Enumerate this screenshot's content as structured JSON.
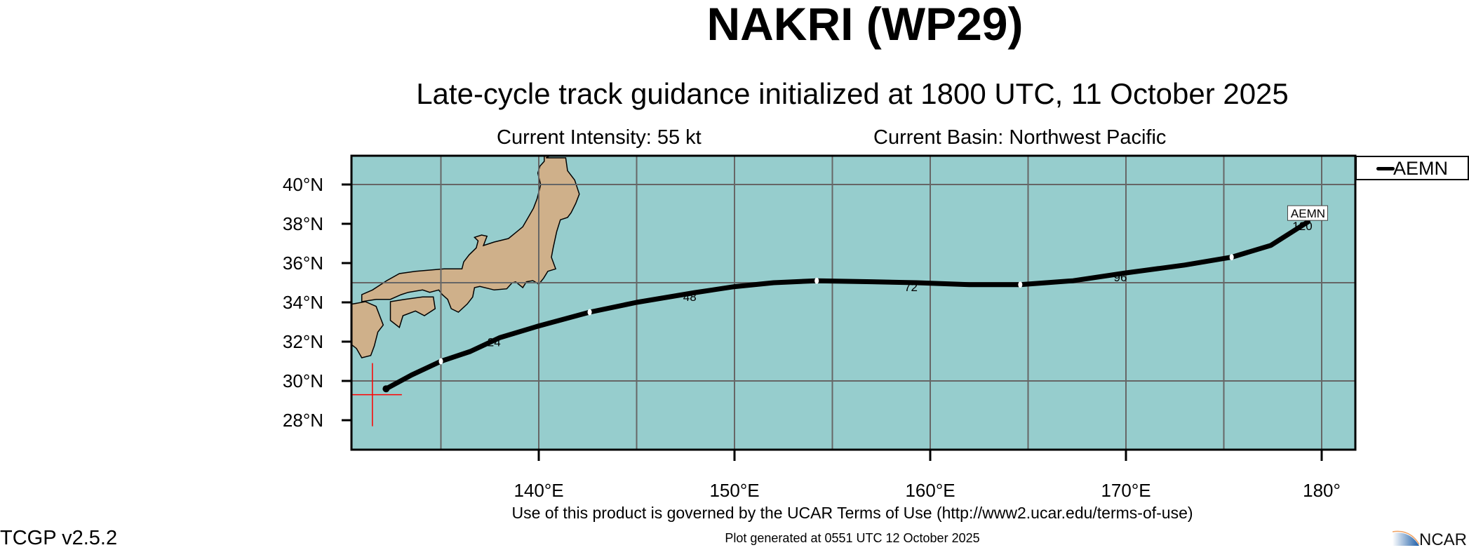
{
  "header": {
    "title": "NAKRI (WP29)",
    "subtitle": "Late-cycle track guidance initialized at 1800 UTC, 11 October 2025",
    "intensity": "Current Intensity: 55 kt",
    "basin": "Current Basin: Northwest Pacific"
  },
  "legend": {
    "entries": [
      {
        "label": "AEMN",
        "color": "#000000"
      }
    ]
  },
  "footer": {
    "terms": "Use of this product is governed by the UCAR Terms of Use (http://www2.ucar.edu/terms-of-use)",
    "generated": "Plot generated at 0551 UTC   12 October 2025",
    "version": "TCGP v2.5.2",
    "logo_text": "NCAR"
  },
  "colors": {
    "ocean": "#96cdcd",
    "land": "#cfb08a",
    "grid": "#666666",
    "track": "#000000",
    "current_position": "#ff0000"
  },
  "chart_data": {
    "type": "map-track",
    "lon_range": [
      130.4,
      181.7
    ],
    "lat_range": [
      26.5,
      41.5
    ],
    "grid": true,
    "grid_spacing_deg": 5,
    "lat_ticks": [
      {
        "value": 40,
        "label": "40°N"
      },
      {
        "value": 38,
        "label": "38°N"
      },
      {
        "value": 36,
        "label": "36°N"
      },
      {
        "value": 34,
        "label": "34°N"
      },
      {
        "value": 32,
        "label": "32°N"
      },
      {
        "value": 30,
        "label": "30°N"
      },
      {
        "value": 28,
        "label": "28°N"
      }
    ],
    "lon_ticks": [
      {
        "value": 140,
        "label": "140°E"
      },
      {
        "value": 150,
        "label": "150°E"
      },
      {
        "value": 160,
        "label": "160°E"
      },
      {
        "value": 170,
        "label": "170°E"
      },
      {
        "value": 180,
        "label": "180°"
      }
    ],
    "current_position": {
      "lon": 131.5,
      "lat": 29.3
    },
    "legend_placement": "top-right outside",
    "series": [
      {
        "name": "AEMN",
        "track": [
          [
            132.2,
            29.6
          ],
          [
            133.5,
            30.3
          ],
          [
            135.0,
            31.0
          ],
          [
            136.5,
            31.5
          ],
          [
            138.0,
            32.2
          ],
          [
            140.0,
            32.8
          ],
          [
            142.6,
            33.5
          ],
          [
            145.0,
            34.0
          ],
          [
            148.0,
            34.5
          ],
          [
            150.0,
            34.8
          ],
          [
            152.0,
            35.0
          ],
          [
            154.2,
            35.1
          ],
          [
            157.0,
            35.05
          ],
          [
            159.3,
            35.0
          ],
          [
            162.0,
            34.9
          ],
          [
            164.6,
            34.9
          ],
          [
            167.3,
            35.1
          ],
          [
            170.0,
            35.5
          ],
          [
            173.0,
            35.9
          ],
          [
            175.4,
            36.3
          ],
          [
            177.4,
            36.9
          ],
          [
            179.3,
            38.1
          ]
        ],
        "markers_12h": [
          [
            135.0,
            31.0
          ],
          [
            142.6,
            33.5
          ],
          [
            154.2,
            35.1
          ],
          [
            164.6,
            34.9
          ],
          [
            175.4,
            36.3
          ]
        ],
        "hour_labels": [
          {
            "hour": "24",
            "lon": 138.0,
            "lat": 32.2
          },
          {
            "hour": "48",
            "lon": 148.0,
            "lat": 34.5
          },
          {
            "hour": "72",
            "lon": 159.3,
            "lat": 35.0
          },
          {
            "hour": "96",
            "lon": 170.0,
            "lat": 35.5
          },
          {
            "hour": "120",
            "lon": 179.3,
            "lat": 38.1
          }
        ],
        "end_label": "AEMN"
      }
    ]
  }
}
